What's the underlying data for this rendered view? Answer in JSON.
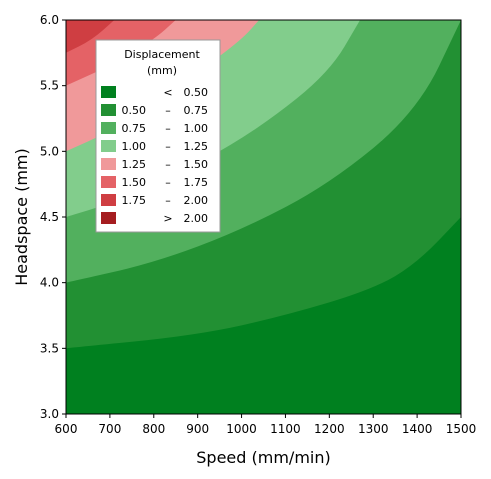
{
  "chart_data": {
    "type": "contour",
    "xlabel": "Speed (mm/min)",
    "ylabel": "Headspace (mm)",
    "xlim": [
      600,
      1500
    ],
    "ylim": [
      3.0,
      6.0
    ],
    "x_ticks": [
      600,
      700,
      800,
      900,
      1000,
      1100,
      1200,
      1300,
      1400,
      1500
    ],
    "y_ticks": [
      "3.0",
      "3.5",
      "4.0",
      "4.5",
      "5.0",
      "5.5",
      "6.0"
    ],
    "grid": false,
    "legend": {
      "title_line1": "Displacement",
      "title_line2": "(mm)",
      "placement": "top-left",
      "levels": [
        {
          "lo": "",
          "op": "<",
          "hi": "0.50",
          "color": "#00801f"
        },
        {
          "lo": "0.50",
          "op": "–",
          "hi": "0.75",
          "color": "#229033"
        },
        {
          "lo": "0.75",
          "op": "–",
          "hi": "1.00",
          "color": "#52b05e"
        },
        {
          "lo": "1.00",
          "op": "–",
          "hi": "1.25",
          "color": "#82cd8c"
        },
        {
          "lo": "1.25",
          "op": "–",
          "hi": "1.50",
          "color": "#f0999a"
        },
        {
          "lo": "1.50",
          "op": "–",
          "hi": "1.75",
          "color": "#e46266"
        },
        {
          "lo": "1.75",
          "op": "–",
          "hi": "2.00",
          "color": "#cf3e42"
        },
        {
          "lo": "",
          "op": ">",
          "hi": "2.00",
          "color": "#a51d20"
        }
      ]
    },
    "contour_boundaries": [
      {
        "level": 0.75,
        "points": [
          [
            600,
            3.5
          ],
          [
            900,
            3.6
          ],
          [
            1100,
            3.75
          ],
          [
            1300,
            3.95
          ],
          [
            1400,
            4.15
          ],
          [
            1500,
            4.5
          ]
        ]
      },
      {
        "level": 1.0,
        "points": [
          [
            600,
            4.0
          ],
          [
            800,
            4.15
          ],
          [
            1000,
            4.4
          ],
          [
            1200,
            4.75
          ],
          [
            1400,
            5.3
          ],
          [
            1500,
            6.0
          ]
        ]
      },
      {
        "level": 1.25,
        "points": [
          [
            600,
            4.5
          ],
          [
            700,
            4.6
          ],
          [
            900,
            4.9
          ],
          [
            1050,
            5.2
          ],
          [
            1200,
            5.6
          ],
          [
            1270,
            6.0
          ]
        ]
      },
      {
        "level": 1.5,
        "points": [
          [
            600,
            5.0
          ],
          [
            700,
            5.15
          ],
          [
            800,
            5.35
          ],
          [
            900,
            5.6
          ],
          [
            1000,
            5.85
          ],
          [
            1040,
            6.0
          ]
        ]
      },
      {
        "level": 1.75,
        "points": [
          [
            600,
            5.5
          ],
          [
            700,
            5.65
          ],
          [
            800,
            5.85
          ],
          [
            850,
            6.0
          ]
        ]
      },
      {
        "level": 2.0,
        "points": [
          [
            600,
            5.75
          ],
          [
            660,
            5.85
          ],
          [
            710,
            6.0
          ]
        ]
      }
    ]
  }
}
